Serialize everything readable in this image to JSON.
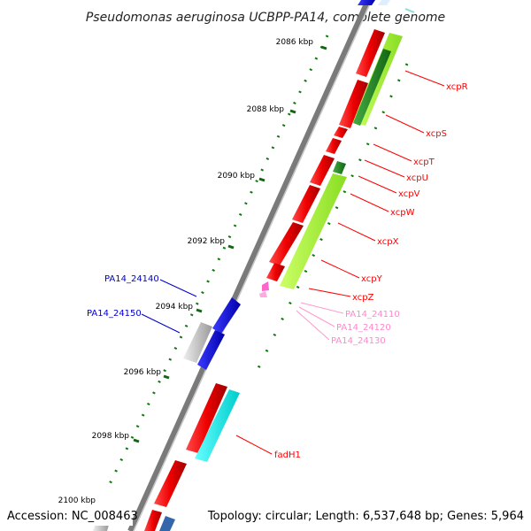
{
  "title": "Pseudomonas aeruginosa UCBPP-PA14, complete genome",
  "accession": "Accession: NC_008463",
  "summary": "Topology: circular; Length: 6,537,648 bp; Genes: 5,964",
  "colors": {
    "forward_gene": "#ff0000",
    "reverse_gene": "#0000ff",
    "backbone": "#808080",
    "orf_green": "#228b22",
    "orf_lime": "#aaff33",
    "cyan_feature": "#00ffff",
    "gray_feature": "#bbbbbb",
    "pink_label": "#ff88cc",
    "tick_green": "#006600"
  },
  "ticks": [
    "2086 kbp",
    "2088 kbp",
    "2090 kbp",
    "2092 kbp",
    "2094 kbp",
    "2096 kbp",
    "2098 kbp",
    "2100 kbp"
  ],
  "labels": {
    "xcpR": "xcpR",
    "xcpS": "xcpS",
    "xcpT": "xcpT",
    "xcpU": "xcpU",
    "xcpV": "xcpV",
    "xcpW": "xcpW",
    "xcpX": "xcpX",
    "xcpY": "xcpY",
    "xcpZ": "xcpZ",
    "PA14_24110": "PA14_24110",
    "PA14_24120": "PA14_24120",
    "PA14_24130": "PA14_24130",
    "PA14_24140": "PA14_24140",
    "PA14_24150": "PA14_24150",
    "fadH1": "fadH1"
  }
}
